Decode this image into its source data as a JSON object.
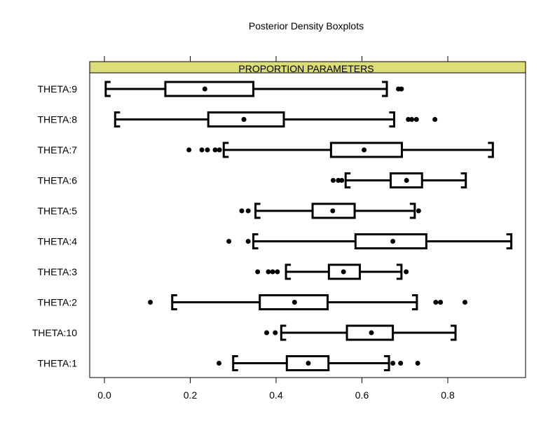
{
  "chart_data": {
    "type": "boxplot",
    "title": "Posterior Density Boxplots",
    "strip_label": "PROPORTION PARAMETERS",
    "strip_color": "#dcdc78",
    "xlim": [
      -0.03,
      0.98
    ],
    "xticks": [
      {
        "value": 0.0,
        "label": "0.0"
      },
      {
        "value": 0.2,
        "label": "0.2"
      },
      {
        "value": 0.4,
        "label": "0.4"
      },
      {
        "value": 0.6,
        "label": "0.6"
      },
      {
        "value": 0.8,
        "label": "0.8"
      }
    ],
    "series": [
      {
        "name": "THETA:9",
        "whisker_low": 0.003,
        "q1": 0.142,
        "median": 0.234,
        "q3": 0.347,
        "whisker_high": 0.658,
        "outliers": [
          0.685,
          0.692
        ]
      },
      {
        "name": "THETA:8",
        "whisker_low": 0.025,
        "q1": 0.242,
        "median": 0.325,
        "q3": 0.418,
        "whisker_high": 0.675,
        "outliers": [
          0.708,
          0.716,
          0.727,
          0.77
        ]
      },
      {
        "name": "THETA:7",
        "whisker_low": 0.278,
        "q1": 0.528,
        "median": 0.605,
        "q3": 0.693,
        "whisker_high": 0.905,
        "outliers": [
          0.197,
          0.227,
          0.24,
          0.258,
          0.268
        ]
      },
      {
        "name": "THETA:6",
        "whisker_low": 0.562,
        "q1": 0.667,
        "median": 0.704,
        "q3": 0.74,
        "whisker_high": 0.842,
        "outliers": [
          0.533,
          0.545,
          0.553
        ]
      },
      {
        "name": "THETA:5",
        "whisker_low": 0.352,
        "q1": 0.485,
        "median": 0.532,
        "q3": 0.583,
        "whisker_high": 0.723,
        "outliers": [
          0.32,
          0.335,
          0.732
        ]
      },
      {
        "name": "THETA:4",
        "whisker_low": 0.347,
        "q1": 0.585,
        "median": 0.672,
        "q3": 0.75,
        "whisker_high": 0.948,
        "outliers": [
          0.29,
          0.335
        ]
      },
      {
        "name": "THETA:3",
        "whisker_low": 0.423,
        "q1": 0.523,
        "median": 0.557,
        "q3": 0.595,
        "whisker_high": 0.692,
        "outliers": [
          0.357,
          0.382,
          0.392,
          0.403,
          0.703
        ]
      },
      {
        "name": "THETA:2",
        "whisker_low": 0.158,
        "q1": 0.362,
        "median": 0.443,
        "q3": 0.52,
        "whisker_high": 0.728,
        "outliers": [
          0.107,
          0.772,
          0.783,
          0.84
        ]
      },
      {
        "name": "THETA:10",
        "whisker_low": 0.412,
        "q1": 0.565,
        "median": 0.622,
        "q3": 0.672,
        "whisker_high": 0.818,
        "outliers": [
          0.378,
          0.398
        ]
      },
      {
        "name": "THETA:1",
        "whisker_low": 0.3,
        "q1": 0.425,
        "median": 0.475,
        "q3": 0.522,
        "whisker_high": 0.663,
        "outliers": [
          0.267,
          0.672,
          0.69,
          0.73
        ]
      }
    ]
  }
}
